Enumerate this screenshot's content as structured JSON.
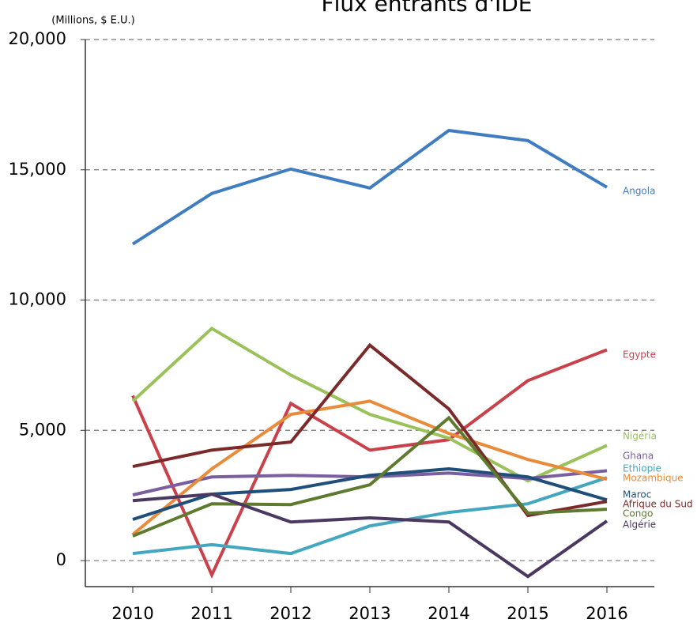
{
  "chart_data": {
    "type": "line",
    "title": "Flux entrants d'IDE",
    "y_label": "(Millions, $ E.U.)",
    "x": [
      2010,
      2011,
      2012,
      2013,
      2014,
      2015,
      2016
    ],
    "xlim": [
      2009.4,
      2016.6
    ],
    "xticks": [
      2010,
      2011,
      2012,
      2013,
      2014,
      2015,
      2016
    ],
    "ylim": [
      -1000,
      20000
    ],
    "yticks": [
      0,
      {
        "value": 5000,
        "label": "5,000"
      },
      {
        "value": 10000,
        "label": "10,000"
      },
      {
        "value": 15000,
        "label": "15,000"
      },
      {
        "value": 20000,
        "label": "20,000"
      }
    ],
    "grid": true,
    "series": [
      {
        "name": "Angola",
        "color": "#3f7cc0",
        "values": [
          12150,
          14090,
          15030,
          14300,
          16510,
          16120,
          14330
        ]
      },
      {
        "name": "Egypte",
        "color": "#c9414a",
        "values": [
          6330,
          -550,
          6030,
          4240,
          4640,
          6910,
          8090
        ]
      },
      {
        "name": "Nigéria",
        "color": "#9bc15a",
        "values": [
          6120,
          8910,
          7120,
          5610,
          4700,
          3060,
          4420
        ]
      },
      {
        "name": "Ghana",
        "color": "#7a5fa0",
        "values": [
          2520,
          3210,
          3270,
          3210,
          3360,
          3150,
          3450
        ]
      },
      {
        "name": "Ethiopie",
        "color": "#44a7c0",
        "values": [
          270,
          610,
          270,
          1330,
          1850,
          2180,
          3180
        ]
      },
      {
        "name": "Mozambique",
        "color": "#e88b3a",
        "values": [
          1000,
          3520,
          5610,
          6120,
          4880,
          3880,
          3120
        ]
      },
      {
        "name": "Maroc",
        "color": "#1f4e79",
        "values": [
          1580,
          2550,
          2730,
          3270,
          3520,
          3210,
          2330
        ]
      },
      {
        "name": "Afrique du Sud",
        "color": "#7b2a2a",
        "values": [
          3610,
          4240,
          4550,
          8270,
          5820,
          1730,
          2270
        ]
      },
      {
        "name": "Congo",
        "color": "#5d7a2e",
        "values": [
          940,
          2180,
          2150,
          2910,
          5480,
          1820,
          1970
        ]
      },
      {
        "name": "Algérie",
        "color": "#4b3860",
        "values": [
          2300,
          2550,
          1480,
          1640,
          1480,
          -610,
          1520
        ]
      }
    ]
  }
}
